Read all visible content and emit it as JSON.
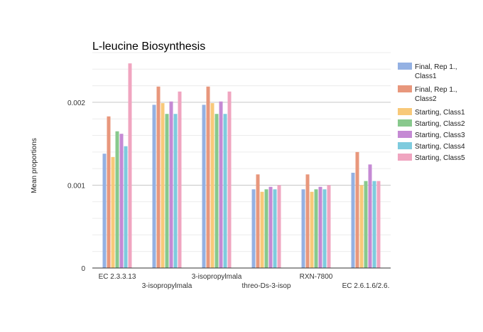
{
  "chart_data": {
    "type": "bar",
    "title": "L-leucine Biosynthesis",
    "xlabel": "",
    "ylabel": "Mean proportions",
    "ylim": [
      0,
      0.0026
    ],
    "yticks": [
      0,
      0.001,
      0.002
    ],
    "ytick_labels": [
      "0",
      "0.001",
      "0.002"
    ],
    "grid": true,
    "legend_position": "right",
    "categories": [
      "EC 2.3.3.13",
      "3-isopropylmala",
      "3-isopropylmala",
      "threo-Ds-3-isop",
      "RXN-7800",
      "EC 2.6.1.6/2.6."
    ],
    "series": [
      {
        "name": "Final, Rep 1., Class1",
        "color": "#94b1e3",
        "values": [
          0.00138,
          0.00197,
          0.00197,
          0.00095,
          0.00095,
          0.00115
        ]
      },
      {
        "name": "Final, Rep 1., Class2",
        "color": "#e8977c",
        "values": [
          0.00183,
          0.00219,
          0.00219,
          0.00113,
          0.00113,
          0.0014
        ]
      },
      {
        "name": "Starting, Class1",
        "color": "#f8c97a",
        "values": [
          0.00134,
          0.00199,
          0.00199,
          0.00092,
          0.00092,
          0.001
        ]
      },
      {
        "name": "Starting, Class2",
        "color": "#88c98d",
        "values": [
          0.00165,
          0.00186,
          0.00186,
          0.00095,
          0.00095,
          0.00105
        ]
      },
      {
        "name": "Starting, Class3",
        "color": "#c58ad4",
        "values": [
          0.00162,
          0.00201,
          0.00201,
          0.00098,
          0.00098,
          0.00125
        ]
      },
      {
        "name": "Starting, Class4",
        "color": "#7ecbde",
        "values": [
          0.00147,
          0.00186,
          0.00186,
          0.00095,
          0.00095,
          0.00105
        ]
      },
      {
        "name": "Starting, Class5",
        "color": "#f0a5c0",
        "values": [
          0.00247,
          0.00213,
          0.00213,
          0.001,
          0.001,
          0.00105
        ]
      }
    ]
  }
}
